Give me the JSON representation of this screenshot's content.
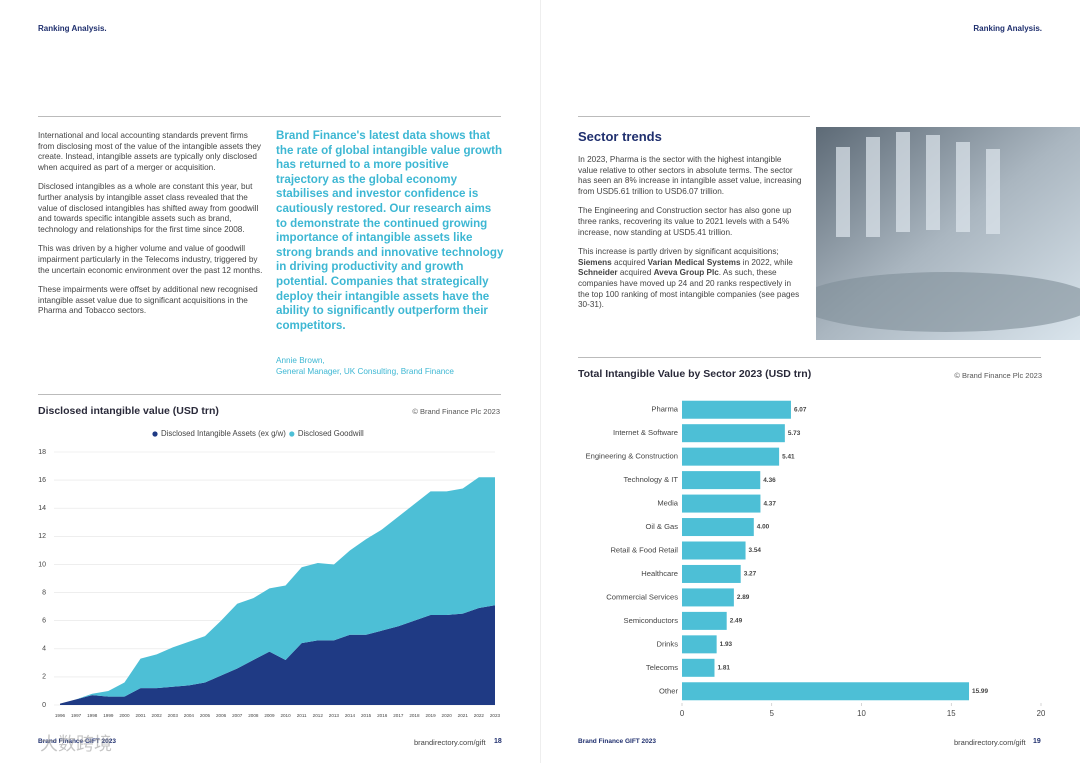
{
  "pages": [
    {
      "header": "Ranking Analysis.",
      "paragraphs": [
        "International and local accounting standards prevent firms from disclosing most of the value of the intangible assets they create. Instead, intangible assets are typically only disclosed when acquired as part of a merger or acquisition.",
        "Disclosed intangibles as a whole are constant this year, but further analysis by intangible asset class revealed that the value of disclosed intangibles has shifted away from goodwill and towards specific intangible assets such as brand, technology and relationships for the first time since 2008.",
        "This was driven by a higher volume and value of goodwill impairment particularly in the Telecoms industry, triggered by the uncertain economic environment over the past 12 months.",
        "These impairments were offset by additional new recognised intangible asset value due to significant acquisitions in the Pharma and Tobacco sectors."
      ],
      "quote": "Brand Finance's latest data shows that the rate of global intangible value growth has returned to a more positive trajectory as the global economy stabilises and investor confidence is cautiously restored. Our research aims to demonstrate the continued growing importance of intangible assets like strong brands and innovative technology in driving productivity and growth potential. Companies that strategically deploy their intangible assets have the ability to significantly outperform their competitors.",
      "quote_author": "Annie Brown,",
      "quote_role": "General Manager, UK Consulting, Brand Finance",
      "footer_left": "Brand Finance GIFT 2023",
      "footer_url": "brandirectory.com/gift",
      "page_number": 18
    },
    {
      "header": "Ranking Analysis.",
      "section_title": "Sector trends",
      "paragraphs": [
        "In 2023, Pharma is the sector with the highest intangible value relative to other sectors in absolute terms. The sector has seen an 8% increase in intangible asset value, increasing from USD5.61 trillion to USD6.07 trillion.",
        "The Engineering and Construction sector has also gone up three ranks, recovering its value to 2021 levels with a 54% increase, now standing at USD5.41 trillion."
      ],
      "paragraph_runs": [
        "This increase is partly driven by significant acquisitions; ",
        "Siemens",
        " acquired ",
        "Varian Medical Systems",
        " in 2022, while ",
        "Schneider",
        " acquired ",
        "Aveva Group Plc",
        ". As such, these companies have moved up 24 and 20 ranks respectively in the top 100 ranking of most intangible companies (see pages 30-31)."
      ],
      "footer_left": "Brand Finance GIFT 2023",
      "footer_url": "brandirectory.com/gift",
      "page_number": 19
    }
  ],
  "watermark": "大数跨境",
  "chart_data": [
    {
      "type": "area",
      "stacked": true,
      "title": "Disclosed intangible value (USD trn)",
      "source": "© Brand Finance Plc 2023",
      "categories": [
        "1996",
        "1997",
        "1998",
        "1999",
        "2000",
        "2001",
        "2002",
        "2003",
        "2004",
        "2005",
        "2006",
        "2007",
        "2008",
        "2009",
        "2010",
        "2011",
        "2012",
        "2013",
        "2014",
        "2015",
        "2016",
        "2017",
        "2018",
        "2019",
        "2020",
        "2021",
        "2022",
        "2023"
      ],
      "series": [
        {
          "name": "Disclosed Intangible Assets (ex g/w)",
          "color": "#1f3a84",
          "values": [
            0.1,
            0.4,
            0.7,
            0.6,
            0.6,
            1.2,
            1.2,
            1.3,
            1.4,
            1.6,
            2.1,
            2.6,
            3.2,
            3.8,
            3.2,
            4.4,
            4.6,
            4.6,
            5.0,
            5.0,
            5.3,
            5.6,
            6.0,
            6.4,
            6.4,
            6.5,
            6.9,
            7.1
          ]
        },
        {
          "name": "Disclosed Goodwill",
          "color": "#4dbfd6",
          "values": [
            0.0,
            0.0,
            0.1,
            0.4,
            1.0,
            2.1,
            2.4,
            2.8,
            3.1,
            3.3,
            3.9,
            4.6,
            4.4,
            4.5,
            5.3,
            5.4,
            5.5,
            5.4,
            6.0,
            6.8,
            7.2,
            7.8,
            8.3,
            8.8,
            8.8,
            8.9,
            9.3,
            9.1
          ]
        }
      ],
      "ylim": [
        0,
        18
      ],
      "yticks": [
        0,
        2,
        4,
        6,
        8,
        10,
        12,
        14,
        16,
        18
      ],
      "grid": true
    },
    {
      "type": "bar",
      "orientation": "horizontal",
      "title": "Total Intangible Value by Sector 2023 (USD trn)",
      "source": "© Brand Finance Plc 2023",
      "categories": [
        "Pharma",
        "Internet & Software",
        "Engineering & Construction",
        "Technology & IT",
        "Media",
        "Oil & Gas",
        "Retail & Food Retail",
        "Healthcare",
        "Commercial Services",
        "Semiconductors",
        "Drinks",
        "Telecoms",
        "Other"
      ],
      "values": [
        6.07,
        5.73,
        5.41,
        4.36,
        4.37,
        4.0,
        3.54,
        3.27,
        2.89,
        2.49,
        1.93,
        1.81,
        15.99
      ],
      "value_labels": [
        "6.07",
        "5.73",
        "5.41",
        "4.36",
        "4.37",
        "4.00",
        "3.54",
        "3.27",
        "2.89",
        "2.49",
        "1.93",
        "1.81",
        "15.99"
      ],
      "color": "#4dbfd6",
      "xlim": [
        0,
        20
      ],
      "xticks": [
        0,
        5,
        10,
        15,
        20
      ]
    }
  ]
}
